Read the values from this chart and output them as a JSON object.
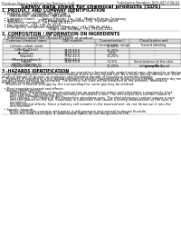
{
  "background_color": "#ffffff",
  "header_left": "Product Name: Lithium Ion Battery Cell",
  "header_right_line1": "Substance Number: SDS-049-008-01",
  "header_right_line2": "Established / Revision: Dec.1.2010",
  "title": "Safety data sheet for chemical products (SDS)",
  "section1_title": "1. PRODUCT AND COMPANY IDENTIFICATION",
  "section1_lines": [
    "  • Product name: Lithium Ion Battery Cell",
    "  • Product code: Cylindrical-type cell",
    "       INR18650L, INR18650L, INR18650A",
    "  • Company name:      Sanyo Electric Co., Ltd., Mobile Energy Company",
    "  • Address:              2001 Kamezakura, Sumoto-City, Hyogo, Japan",
    "  • Telephone number:  +81-799-26-4111",
    "  • Fax number:  +81-799-26-4129",
    "  • Emergency telephone number (Weekday) +81-799-26-2662",
    "                                         (Night and holiday) +81-799-26-2101"
  ],
  "section2_title": "2. COMPOSITION / INFORMATION ON INGREDIENTS",
  "section2_lines": [
    "  • Substance or preparation: Preparation",
    "  • Information about the chemical nature of product:"
  ],
  "table_col_headers": [
    "Common chemical name",
    "CAS number",
    "Concentration /\nConcentration range",
    "Classification and\nhazard labeling"
  ],
  "table_rows": [
    [
      "Lithium cobalt oxide\n(LiMn/CoO2(x))",
      "-",
      "30-60%",
      "-"
    ],
    [
      "Iron",
      "7439-89-6",
      "15-25%",
      "-"
    ],
    [
      "Aluminum",
      "7429-90-5",
      "2-5%",
      "-"
    ],
    [
      "Graphite\n(Mixed graphite-1)\n(Al/Mn graphite-1)",
      "7782-42-5\n7782-44-2",
      "10-25%",
      "-"
    ],
    [
      "Copper",
      "7440-50-8",
      "5-15%",
      "Sensitization of the skin\ngroup No.2"
    ],
    [
      "Organic electrolyte",
      "-",
      "10-20%",
      "Inflammable liquid"
    ]
  ],
  "section3_title": "3. HAZARDS IDENTIFICATION",
  "section3_paras": [
    "    For the battery cell, chemical materials are stored in a hermetically sealed metal case, designed to withstand",
    "temperature variations and electro-mechanical shock during normal use. As a result, during normal use, there is no",
    "physical danger of ignition or explosion and therefore danger of hazardous materials leakage.",
    "    However, if exposed to a fire, added mechanical shocks, decomposed, short-circuit battery, extreme dry miss-use,",
    "the gas breaks ventout be operated. The battery cell case will be breached at fire-extreme. Hazardous",
    "materials may be released.",
    "    Moreover, if heated strongly by the surrounding fire, somt gas may be emitted.",
    "",
    "  • Most important hazard and effects:",
    "    Human health effects:",
    "        Inhalation: The release of the electrolyte has an anesthesia action and stimulates a respiratory tract.",
    "        Skin contact: The release of the electrolyte stimulates a skin. The electrolyte skin contact causes a",
    "        sore and stimulation on the skin.",
    "        Eye contact: The release of the electrolyte stimulates eyes. The electrolyte eye contact causes a sore",
    "        and stimulation on the eye. Especially, a substance that causes a strong inflammation of the eyes is",
    "        contained.",
    "        Environmental effects: Since a battery cell remains in the environment, do not throw out it into the",
    "        environment.",
    "",
    "  • Specific hazards:",
    "        If the electrolyte contacts with water, it will generate detrimental hydrogen fluoride.",
    "        Since the used electrolyte is inflammable liquid, do not bring close to fire."
  ]
}
